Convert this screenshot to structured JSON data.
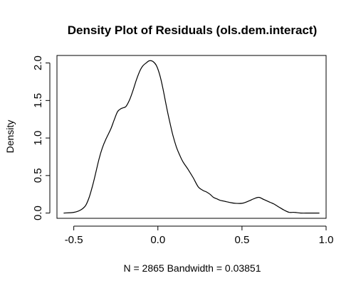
{
  "chart_data": {
    "type": "line",
    "title": "Density Plot of Residuals (ols.dem.interact)",
    "xlabel": "N = 2865   Bandwidth = 0.03851",
    "ylabel": "Density",
    "xlim": [
      -0.6,
      1.0
    ],
    "ylim": [
      -0.07,
      2.1
    ],
    "xticks": [
      -0.5,
      0.0,
      0.5,
      1.0
    ],
    "xtick_labels": [
      "-0.5",
      "0.0",
      "0.5",
      "1.0"
    ],
    "yticks": [
      0.0,
      0.5,
      1.0,
      1.5,
      2.0
    ],
    "ytick_labels": [
      "0.0",
      "0.5",
      "1.0",
      "1.5",
      "2.0"
    ],
    "grid": false,
    "line_color": "#000000",
    "series": [
      {
        "x": [
          -0.56,
          -0.5,
          -0.46,
          -0.43,
          -0.41,
          -0.39,
          -0.37,
          -0.35,
          -0.33,
          -0.31,
          -0.28,
          -0.26,
          -0.24,
          -0.22,
          -0.21,
          -0.19,
          -0.17,
          -0.15,
          -0.13,
          -0.11,
          -0.09,
          -0.07,
          -0.05,
          -0.03,
          -0.01,
          0.01,
          0.03,
          0.05,
          0.07,
          0.09,
          0.11,
          0.13,
          0.15,
          0.18,
          0.21,
          0.24,
          0.27,
          0.29,
          0.31,
          0.33,
          0.35,
          0.37,
          0.39,
          0.41,
          0.43,
          0.46,
          0.5,
          0.54,
          0.57,
          0.6,
          0.63,
          0.66,
          0.69,
          0.72,
          0.75,
          0.78,
          0.81,
          0.85,
          0.9,
          0.96
        ],
        "y": [
          0.0,
          0.01,
          0.04,
          0.1,
          0.2,
          0.35,
          0.53,
          0.72,
          0.87,
          0.98,
          1.12,
          1.24,
          1.35,
          1.39,
          1.4,
          1.42,
          1.5,
          1.62,
          1.76,
          1.88,
          1.96,
          2.0,
          2.03,
          2.02,
          1.97,
          1.85,
          1.66,
          1.43,
          1.22,
          1.03,
          0.88,
          0.77,
          0.68,
          0.58,
          0.47,
          0.35,
          0.3,
          0.28,
          0.25,
          0.21,
          0.19,
          0.17,
          0.16,
          0.15,
          0.14,
          0.13,
          0.13,
          0.16,
          0.19,
          0.21,
          0.18,
          0.15,
          0.12,
          0.08,
          0.04,
          0.01,
          0.01,
          0.0,
          0.0,
          0.0
        ]
      }
    ]
  }
}
